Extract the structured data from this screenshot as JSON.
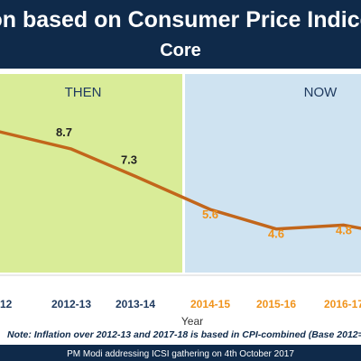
{
  "header": {
    "title": "on based on Consumer Price Indice",
    "subtitle": "Core"
  },
  "panels": {
    "then_label": "THEN",
    "now_label": "NOW"
  },
  "footer": {
    "note": "Note: Inflation over 2012-13 and 2017-18 is based in CPI-combined (Base 2012=1",
    "caption": "PM Modi addressing ICSI gathering on 4th October 2017"
  },
  "colors": {
    "header_bg": "#0f2a4a",
    "then_bg": "#d9ec98",
    "now_bg": "#cfe3f1",
    "line": "#c2661b",
    "then_text": "#1f3a5f",
    "now_text": "#f0931b",
    "footer_bg": "#0f2a4a",
    "note_text": "#0f2a4a"
  },
  "chart_data": {
    "type": "line",
    "xlabel": "Year",
    "ylabel": "",
    "categories": [
      "12",
      "2012-13",
      "2013-14",
      "2014-15",
      "2015-16",
      "2016-17"
    ],
    "values": [
      null,
      8.7,
      7.3,
      5.6,
      4.6,
      4.8
    ],
    "value_labels": [
      "",
      "8.7",
      "7.3",
      "5.6",
      "4.6",
      "4.8"
    ],
    "line_start_value": 9.6,
    "line_end_value": 4.6,
    "period_of_category": [
      "then",
      "then",
      "then",
      "now",
      "now",
      "now"
    ]
  }
}
